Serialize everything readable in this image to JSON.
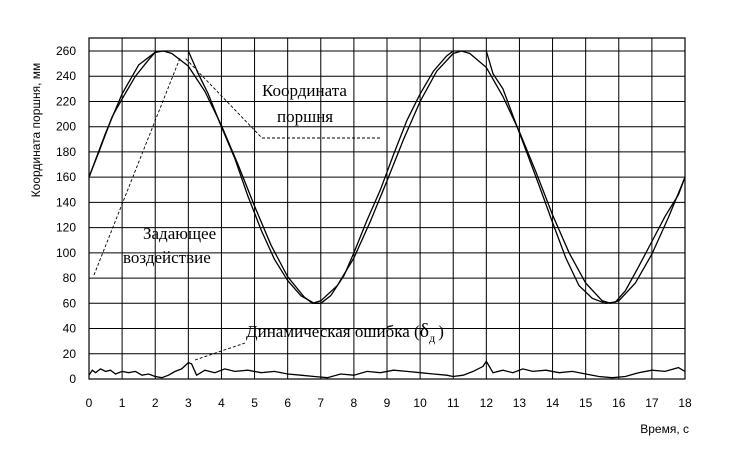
{
  "chart_data": {
    "type": "line",
    "title": "",
    "xlabel": "Время, с",
    "ylabel": "Координата поршня, мм",
    "xlim": [
      0,
      18
    ],
    "ylim": [
      0,
      260
    ],
    "x_ticks": [
      "0",
      "1",
      "2",
      "3",
      "4",
      "5",
      "6",
      "7",
      "8",
      "9",
      "10",
      "11",
      "12",
      "13",
      "14",
      "15",
      "16",
      "17",
      "18"
    ],
    "y_ticks": [
      "0",
      "20",
      "40",
      "60",
      "80",
      "100",
      "120",
      "140",
      "160",
      "180",
      "200",
      "220",
      "240",
      "260"
    ],
    "grid": true,
    "annotations": {
      "piston_line1": "Координата",
      "piston_line2": "поршня",
      "input_line1": "Задающее",
      "input_line2": "воздействие",
      "error_prefix": "Динамическая ошибка (",
      "error_symbol": "δ",
      "error_sub": "д",
      "error_suffix": ")"
    },
    "series": [
      {
        "role": "input",
        "x": [
          0,
          0.5,
          1,
          1.5,
          2,
          2.25,
          2.5,
          3,
          3.5,
          4,
          4.5,
          5,
          5.5,
          6,
          6.5,
          6.75,
          7,
          7.5,
          8,
          8.5,
          9,
          9.5,
          10,
          10.5,
          11,
          11.25,
          11.5,
          12,
          12.5,
          13,
          13.5,
          14,
          14.5,
          15,
          15.5,
          15.75,
          16,
          16.5,
          17,
          17.5,
          18
        ],
        "y": [
          160,
          195,
          226,
          249,
          259,
          260,
          258,
          248,
          228,
          201,
          170,
          137,
          106,
          81,
          65,
          60,
          62,
          74,
          96,
          125,
          157,
          190,
          220,
          244,
          258,
          260,
          258,
          247,
          224,
          196,
          164,
          130,
          100,
          76,
          62,
          60,
          62,
          76,
          99,
          128,
          160
        ]
      },
      {
        "role": "piston",
        "x": [
          0,
          0.3,
          0.7,
          1,
          1.4,
          1.8,
          2,
          2.2,
          2.5,
          2.8,
          3,
          3.3,
          3.6,
          4,
          4.4,
          4.8,
          5.2,
          5.6,
          6,
          6.4,
          6.8,
          7,
          7.3,
          7.7,
          8,
          8.4,
          8.8,
          9.2,
          9.6,
          10,
          10.4,
          10.8,
          11,
          11.3,
          11.6,
          12,
          12.2,
          12.5,
          12.8,
          13.2,
          13.6,
          14,
          14.4,
          14.8,
          15.2,
          15.6,
          15.9,
          16.2,
          16.6,
          17,
          17.4,
          17.8,
          18
        ],
        "y": [
          160,
          180,
          208,
          222,
          240,
          253,
          259,
          260,
          260,
          260,
          260,
          242,
          226,
          200,
          175,
          145,
          118,
          95,
          78,
          66,
          60,
          60,
          66,
          82,
          100,
          126,
          150,
          178,
          205,
          226,
          244,
          256,
          260,
          260,
          260,
          260,
          242,
          230,
          209,
          181,
          153,
          124,
          96,
          74,
          64,
          60,
          61,
          70,
          89,
          109,
          129,
          146,
          160
        ]
      },
      {
        "role": "error",
        "x": [
          0,
          0.1,
          0.2,
          0.35,
          0.5,
          0.65,
          0.8,
          1,
          1.2,
          1.4,
          1.6,
          1.8,
          2,
          2.2,
          2.4,
          2.6,
          2.8,
          3,
          3.1,
          3.25,
          3.5,
          3.8,
          4.1,
          4.4,
          4.8,
          5.2,
          5.6,
          6,
          6.4,
          6.8,
          7.2,
          7.6,
          8,
          8.4,
          8.8,
          9.2,
          9.6,
          10,
          10.4,
          10.8,
          11,
          11.3,
          11.6,
          11.9,
          12,
          12.2,
          12.5,
          12.8,
          13.1,
          13.4,
          13.8,
          14.2,
          14.6,
          15,
          15.4,
          15.8,
          16.2,
          16.6,
          17,
          17.4,
          17.8,
          18
        ],
        "y": [
          3,
          7,
          5,
          8,
          6,
          7,
          4,
          6,
          5,
          6,
          3,
          4,
          2,
          1,
          3,
          6,
          8,
          13,
          12,
          3,
          7,
          5,
          8,
          6,
          7,
          5,
          6,
          4,
          3,
          2,
          1,
          4,
          3,
          6,
          5,
          7,
          6,
          5,
          4,
          3,
          2,
          3,
          6,
          10,
          14,
          5,
          7,
          5,
          8,
          6,
          7,
          5,
          6,
          4,
          2,
          1,
          2,
          5,
          7,
          6,
          9,
          6
        ]
      }
    ]
  }
}
